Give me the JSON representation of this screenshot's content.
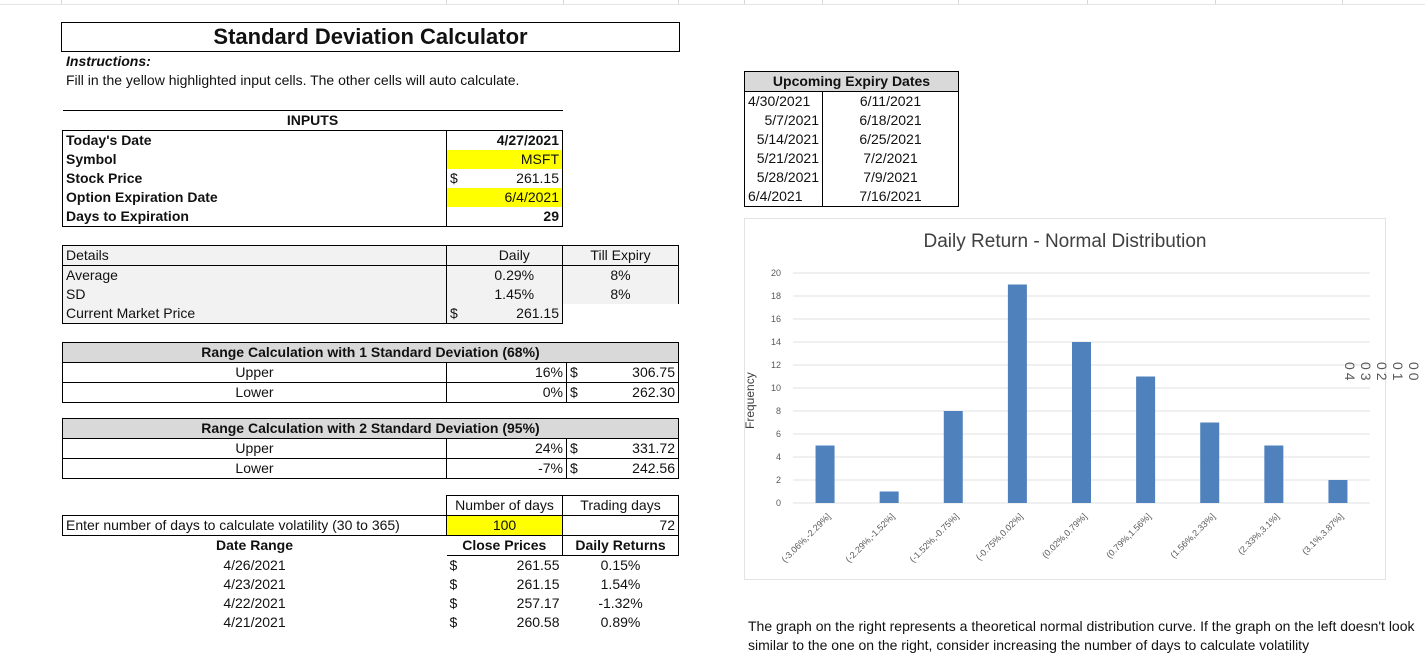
{
  "title": "Standard Deviation Calculator",
  "instructions_heading": "Instructions:",
  "instructions_text": "Fill in the yellow highlighted input cells. The other cells will auto calculate.",
  "inputs": {
    "header": "INPUTS",
    "rows": [
      {
        "label": "Today's Date",
        "currency": "",
        "value": "4/27/2021",
        "highlight": false
      },
      {
        "label": "Symbol",
        "currency": "",
        "value": "MSFT",
        "highlight": true
      },
      {
        "label": "Stock Price",
        "currency": "$",
        "value": "261.15",
        "highlight": false
      },
      {
        "label": "Option Expiration Date",
        "currency": "",
        "value": "6/4/2021",
        "highlight": true
      },
      {
        "label": "Days to Expiration",
        "currency": "",
        "value": "29",
        "highlight": false
      }
    ]
  },
  "details": {
    "header_label": "Details",
    "col_daily": "Daily",
    "col_till": "Till Expiry",
    "rows": [
      {
        "label": "Average",
        "currency": "",
        "daily": "0.29%",
        "till": "8%"
      },
      {
        "label": "SD",
        "currency": "",
        "daily": "1.45%",
        "till": "8%"
      },
      {
        "label": "Current Market Price",
        "currency": "$",
        "daily": "261.15",
        "till": ""
      }
    ]
  },
  "range1": {
    "header": "Range Calculation with 1 Standard Deviation (68%)",
    "rows": [
      {
        "label": "Upper",
        "pct": "16%",
        "currency": "$",
        "price": "306.75"
      },
      {
        "label": "Lower",
        "pct": "0%",
        "currency": "$",
        "price": "262.30"
      }
    ]
  },
  "range2": {
    "header": "Range Calculation with 2 Standard Deviation (95%)",
    "rows": [
      {
        "label": "Upper",
        "pct": "24%",
        "currency": "$",
        "price": "331.72"
      },
      {
        "label": "Lower",
        "pct": "-7%",
        "currency": "$",
        "price": "242.56"
      }
    ]
  },
  "volatility": {
    "col_days": "Number of days",
    "col_trading": "Trading days",
    "prompt": "Enter number of days to calculate volatility (30 to 365)",
    "days": "100",
    "trading": "72",
    "hdr_date": "Date Range",
    "hdr_close": "Close Prices",
    "hdr_returns": "Daily Returns",
    "rows": [
      {
        "date": "4/26/2021",
        "currency": "$",
        "close": "261.55",
        "ret": "0.15%"
      },
      {
        "date": "4/23/2021",
        "currency": "$",
        "close": "261.15",
        "ret": "1.54%"
      },
      {
        "date": "4/22/2021",
        "currency": "$",
        "close": "257.17",
        "ret": "-1.32%"
      },
      {
        "date": "4/21/2021",
        "currency": "$",
        "close": "260.58",
        "ret": "0.89%"
      }
    ]
  },
  "expiry": {
    "header": "Upcoming Expiry Dates",
    "left": [
      "4/30/2021",
      "5/7/2021",
      "5/14/2021",
      "5/21/2021",
      "5/28/2021",
      "6/4/2021"
    ],
    "right": [
      "6/11/2021",
      "6/18/2021",
      "6/25/2021",
      "7/2/2021",
      "7/9/2021",
      "7/16/2021"
    ]
  },
  "chart_data": {
    "type": "bar",
    "title": "Daily Return - Normal Distribution",
    "xlabel": "",
    "ylabel": "Frequency",
    "ylim": [
      0,
      20
    ],
    "yticks": [
      0,
      2,
      4,
      6,
      8,
      10,
      12,
      14,
      16,
      18,
      20
    ],
    "grid": true,
    "color": "#4f81bd",
    "categories": [
      "(-3.06%,-2.29%]",
      "(-2.29%,-1.52%]",
      "(-1.52%,-0.75%]",
      "(-0.75%,0.02%]",
      "(0.02%,0.79%]",
      "(0.79%,1.56%]",
      "(1.56%,2.33%]",
      "(2.33%,3.1%]",
      "(3.1%,3.87%]"
    ],
    "values": [
      5,
      1,
      8,
      19,
      14,
      11,
      7,
      5,
      2
    ]
  },
  "footer_note": "The graph on the right represents a theoretical normal distribution curve. If the graph on the left doesn't look similar to the one on the right, consider increasing the number of days to calculate volatility",
  "right_cut_text": "00 01 02 03 04"
}
